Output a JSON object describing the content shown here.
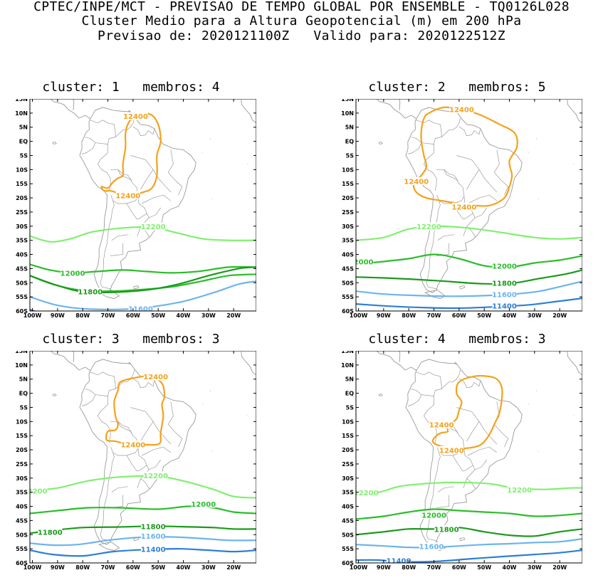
{
  "header": {
    "line1": "CPTEC/INPE/MCT - PREVISAO DE TEMPO GLOBAL POR ENSEMBLE - TQ0126L028",
    "line2": "Cluster Medio para a Altura Geopotencial (m) em 200 hPa",
    "line3": "Previsao de: 2020121100Z   Valido para: 2020122512Z"
  },
  "axes": {
    "lat_labels": [
      "15N",
      "10N",
      "5N",
      "EQ",
      "5S",
      "10S",
      "15S",
      "20S",
      "25S",
      "30S",
      "35S",
      "40S",
      "45S",
      "50S",
      "55S",
      "60S"
    ],
    "lon_labels": [
      "100W",
      "90W",
      "80W",
      "70W",
      "60W",
      "50W",
      "40W",
      "30W",
      "20W"
    ]
  },
  "colors": {
    "c12400": "#f5a11b",
    "c12200": "#7ff06e",
    "c12000": "#2bbd2b",
    "c11800": "#1a9a1a",
    "c11600": "#6cb4ee",
    "c11400": "#2c7fd6",
    "map": "#9a9a9a"
  },
  "panels": [
    {
      "title": "cluster: 1   membros: 4",
      "labels": [
        {
          "t": "12400",
          "c": "c12400",
          "x": -59,
          "y": 8.8
        },
        {
          "t": "12400",
          "c": "c12400",
          "x": -62,
          "y": -19.2
        },
        {
          "t": "12200",
          "c": "c12200",
          "x": -52,
          "y": -30.2
        },
        {
          "t": "12000",
          "c": "c12000",
          "x": -84,
          "y": -46.6
        },
        {
          "t": "11800",
          "c": "c11800",
          "x": -77,
          "y": -53.2
        },
        {
          "t": "11600",
          "c": "c11600",
          "x": -57,
          "y": -59.2
        }
      ]
    },
    {
      "title": "cluster: 2   membros: 5",
      "labels": [
        {
          "t": "12400",
          "c": "c12400",
          "x": -59,
          "y": 11.2
        },
        {
          "t": "12400",
          "c": "c12400",
          "x": -77,
          "y": -14.2
        },
        {
          "t": "12400",
          "c": "c12400",
          "x": -58,
          "y": -23.2
        },
        {
          "t": "12200",
          "c": "c12200",
          "x": -72,
          "y": -30.2
        },
        {
          "t": "2000",
          "c": "c12000",
          "x": -98,
          "y": -42.6
        },
        {
          "t": "12000",
          "c": "c12000",
          "x": -42,
          "y": -44.2
        },
        {
          "t": "11800",
          "c": "c11800",
          "x": -42,
          "y": -50.2
        },
        {
          "t": "11600",
          "c": "c11600",
          "x": -42,
          "y": -54.2
        },
        {
          "t": "11400",
          "c": "c11400",
          "x": -42,
          "y": -58.2
        }
      ]
    },
    {
      "title": "cluster: 3   membros: 3",
      "labels": [
        {
          "t": "12400",
          "c": "c12400",
          "x": -51,
          "y": 5.8
        },
        {
          "t": "12400",
          "c": "c12400",
          "x": -60,
          "y": -18.2
        },
        {
          "t": "12200",
          "c": "c12200",
          "x": -51,
          "y": -29.2
        },
        {
          "t": "2200",
          "c": "c12200",
          "x": -98,
          "y": -34.6
        },
        {
          "t": "12000",
          "c": "c12000",
          "x": -32,
          "y": -39.2
        },
        {
          "t": "11800",
          "c": "c11800",
          "x": -93,
          "y": -49.2
        },
        {
          "t": "11800",
          "c": "c11800",
          "x": -52,
          "y": -47.2
        },
        {
          "t": "11600",
          "c": "c11600",
          "x": -52,
          "y": -50.6
        },
        {
          "t": "11400",
          "c": "c11400",
          "x": -52,
          "y": -55.2
        }
      ]
    },
    {
      "title": "cluster: 4   membros: 3",
      "labels": [
        {
          "t": "12400",
          "c": "c12400",
          "x": -67,
          "y": -11.2
        },
        {
          "t": "12400",
          "c": "c12400",
          "x": -63,
          "y": -20.2
        },
        {
          "t": "12200",
          "c": "c12200",
          "x": -97,
          "y": -35.2
        },
        {
          "t": "12200",
          "c": "c12200",
          "x": -36,
          "y": -34.2
        },
        {
          "t": "12000",
          "c": "c12000",
          "x": -70,
          "y": -43.2
        },
        {
          "t": "11800",
          "c": "c11800",
          "x": -65,
          "y": -48.2
        },
        {
          "t": "11600",
          "c": "c11600",
          "x": -71,
          "y": -54.2
        },
        {
          "t": "11400",
          "c": "c11400",
          "x": -84,
          "y": -59.2
        }
      ]
    }
  ]
}
